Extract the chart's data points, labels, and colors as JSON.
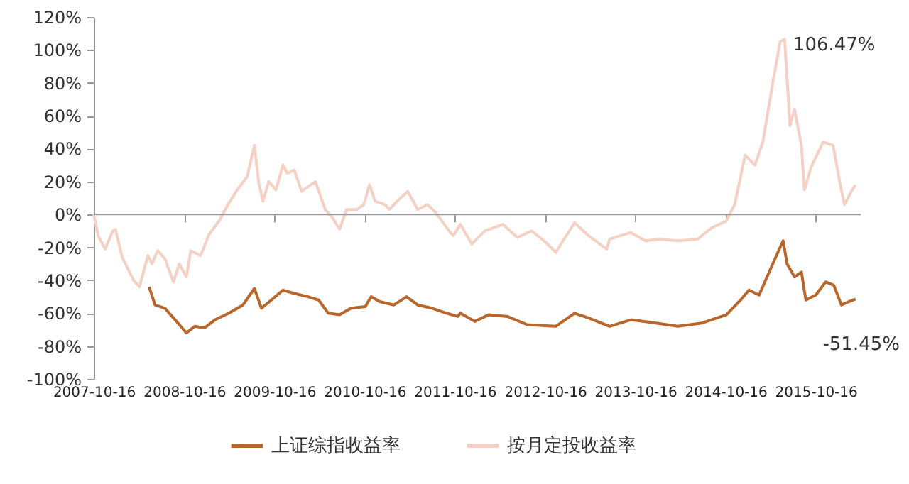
{
  "chart_data": {
    "type": "line",
    "xlim": [
      "2007-10-16",
      "2016-04-15"
    ],
    "xticks": [
      "2007-10-16",
      "2008-10-16",
      "2009-10-16",
      "2010-10-16",
      "2011-10-16",
      "2012-10-16",
      "2013-10-16",
      "2014-10-16",
      "2015-10-16"
    ],
    "ylim": [
      -100,
      120
    ],
    "yticks": [
      {
        "value": -100,
        "label": "-100%"
      },
      {
        "value": -80,
        "label": "-80%"
      },
      {
        "value": -60,
        "label": "-60%"
      },
      {
        "value": -40,
        "label": "-40%"
      },
      {
        "value": -20,
        "label": "-20%"
      },
      {
        "value": 0,
        "label": "0%"
      },
      {
        "value": 20,
        "label": "20%"
      },
      {
        "value": 40,
        "label": "40%"
      },
      {
        "value": 60,
        "label": "60%"
      },
      {
        "value": 80,
        "label": "80%"
      },
      {
        "value": 100,
        "label": "100%"
      },
      {
        "value": 120,
        "label": "120%"
      }
    ],
    "grid": false,
    "ref_lines": [
      {
        "axis": "y",
        "value": 0,
        "color": "#999999"
      }
    ],
    "legend": "bottom",
    "series": [
      {
        "name": "上证综指收益率",
        "color": "#b8662c",
        "x": [
          "2008-05-27",
          "2008-06-20",
          "2008-07-30",
          "2008-09-15",
          "2008-10-25",
          "2008-11-28",
          "2009-01-06",
          "2009-02-18",
          "2009-04-15",
          "2009-06-11",
          "2009-07-27",
          "2009-08-25",
          "2009-10-04",
          "2009-11-20",
          "2010-01-05",
          "2010-03-01",
          "2010-04-13",
          "2010-05-22",
          "2010-07-07",
          "2010-08-22",
          "2010-10-19",
          "2010-11-12",
          "2010-12-16",
          "2011-02-12",
          "2011-04-04",
          "2011-05-19",
          "2011-07-16",
          "2011-09-13",
          "2011-10-28",
          "2011-11-08",
          "2012-01-05",
          "2012-03-01",
          "2012-05-16",
          "2012-08-04",
          "2012-11-28",
          "2013-02-12",
          "2013-04-10",
          "2013-07-04",
          "2013-09-28",
          "2014-01-07",
          "2014-04-06",
          "2014-07-13",
          "2014-10-19",
          "2014-12-16",
          "2015-01-19",
          "2015-03-01",
          "2015-04-25",
          "2015-06-06",
          "2015-06-22",
          "2015-07-22",
          "2015-08-19",
          "2015-09-06",
          "2015-10-16",
          "2015-11-25",
          "2015-12-28",
          "2016-01-28",
          "2016-02-27",
          "2016-03-25"
        ],
        "values": [
          -44,
          -55,
          -57,
          -65,
          -72,
          -68,
          -69,
          -64,
          -60,
          -55,
          -45,
          -57,
          -52,
          -46,
          -48,
          -50,
          -52,
          -60,
          -61,
          -57,
          -56,
          -50,
          -53,
          -55,
          -50,
          -55,
          -57,
          -60,
          -62,
          -60,
          -65,
          -61,
          -62,
          -67,
          -68,
          -60,
          -63,
          -68,
          -64,
          -66,
          -68,
          -66,
          -61,
          -52,
          -46,
          -49,
          -30,
          -16,
          -30,
          -38,
          -35,
          -52,
          -49,
          -41,
          -43,
          -55,
          -53,
          -51.45
        ]
      },
      {
        "name": "按月定投收益率",
        "color": "#f5d0c5",
        "x": [
          "2007-10-16",
          "2007-11-03",
          "2007-12-01",
          "2008-01-01",
          "2008-01-12",
          "2008-02-08",
          "2008-03-25",
          "2008-04-18",
          "2008-05-22",
          "2008-06-08",
          "2008-07-01",
          "2008-07-30",
          "2008-09-03",
          "2008-09-26",
          "2008-10-25",
          "2008-11-12",
          "2008-12-21",
          "2009-01-25",
          "2009-03-06",
          "2009-04-15",
          "2009-05-19",
          "2009-06-28",
          "2009-07-27",
          "2009-08-13",
          "2009-08-31",
          "2009-09-23",
          "2009-10-22",
          "2009-11-20",
          "2009-12-07",
          "2010-01-05",
          "2010-02-03",
          "2010-03-13",
          "2010-03-31",
          "2010-05-10",
          "2010-06-08",
          "2010-07-07",
          "2010-08-04",
          "2010-09-15",
          "2010-10-13",
          "2010-11-05",
          "2010-11-28",
          "2011-01-07",
          "2011-01-25",
          "2011-02-24",
          "2011-04-09",
          "2011-05-19",
          "2011-06-28",
          "2011-08-01",
          "2011-09-23",
          "2011-10-10",
          "2011-11-08",
          "2011-12-24",
          "2012-02-15",
          "2012-04-28",
          "2012-06-25",
          "2012-08-22",
          "2012-10-19",
          "2012-11-28",
          "2013-02-12",
          "2013-04-10",
          "2013-06-22",
          "2013-07-04",
          "2013-09-28",
          "2013-11-25",
          "2014-01-22",
          "2014-04-06",
          "2014-06-25",
          "2014-08-22",
          "2014-10-19",
          "2014-11-22",
          "2015-01-03",
          "2015-02-12",
          "2015-03-16",
          "2015-04-25",
          "2015-05-25",
          "2015-06-12",
          "2015-07-04",
          "2015-07-22",
          "2015-08-19",
          "2015-08-31",
          "2015-09-28",
          "2015-11-15",
          "2015-12-25",
          "2016-01-22",
          "2016-02-09",
          "2016-03-08",
          "2016-03-25"
        ],
        "values": [
          0,
          -13,
          -21,
          -10,
          -9,
          -26,
          -40,
          -44,
          -25,
          -30,
          -22,
          -27,
          -41,
          -30,
          -38,
          -22,
          -25,
          -12,
          -4,
          7,
          15,
          23,
          42,
          20,
          8,
          20,
          15,
          30,
          25,
          27,
          14,
          18,
          20,
          3,
          -2,
          -9,
          3,
          3,
          6,
          18,
          8,
          6,
          3,
          8,
          14,
          3,
          6,
          1,
          -10,
          -13,
          -6,
          -18,
          -10,
          -6,
          -14,
          -10,
          -17,
          -23,
          -5,
          -13,
          -21,
          -15,
          -11,
          -16,
          -15,
          -16,
          -15,
          -8,
          -4,
          6,
          36,
          30,
          44,
          80,
          105,
          106.47,
          54,
          64,
          42,
          15,
          29,
          44,
          42,
          19,
          6,
          14,
          18
        ]
      }
    ],
    "annotations": [
      {
        "text": "106.47%",
        "x": "2015-06-12",
        "y": 106.47
      },
      {
        "text": "-51.45%",
        "x": "2016-03-25",
        "y": -51.45
      }
    ]
  }
}
